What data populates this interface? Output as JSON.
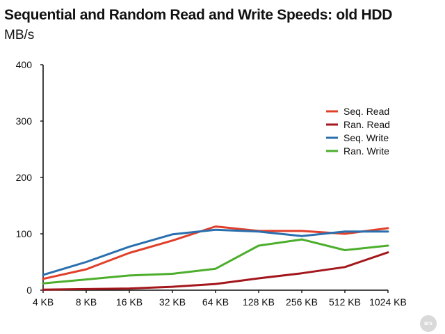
{
  "chart_data": {
    "type": "line",
    "title": "Sequential and Random Read and Write Speeds: old HDD",
    "subtitle": "MB/s",
    "xlabel": "",
    "ylabel": "",
    "categories": [
      "4 KB",
      "8 KB",
      "16 KB",
      "32 KB",
      "64 KB",
      "128 KB",
      "256 KB",
      "512 KB",
      "1024 KB"
    ],
    "ylim": [
      0,
      400
    ],
    "yticks": [
      0,
      100,
      200,
      300,
      400
    ],
    "grid": false,
    "legend_position": "right",
    "series": [
      {
        "name": "Seq. Read",
        "color": "#e0402b",
        "values": [
          20,
          37,
          66,
          88,
          113,
          105,
          105,
          100,
          110
        ]
      },
      {
        "name": "Ran. Read",
        "color": "#a3161b",
        "values": [
          1,
          2,
          3,
          6,
          11,
          21,
          30,
          41,
          67
        ]
      },
      {
        "name": "Seq. Write",
        "color": "#2a6fae",
        "values": [
          27,
          50,
          77,
          99,
          107,
          104,
          96,
          104,
          104
        ]
      },
      {
        "name": "Ran. Write",
        "color": "#4cae2c",
        "values": [
          12,
          19,
          26,
          29,
          38,
          79,
          90,
          71,
          79
        ]
      }
    ]
  },
  "logo_text": "ars"
}
